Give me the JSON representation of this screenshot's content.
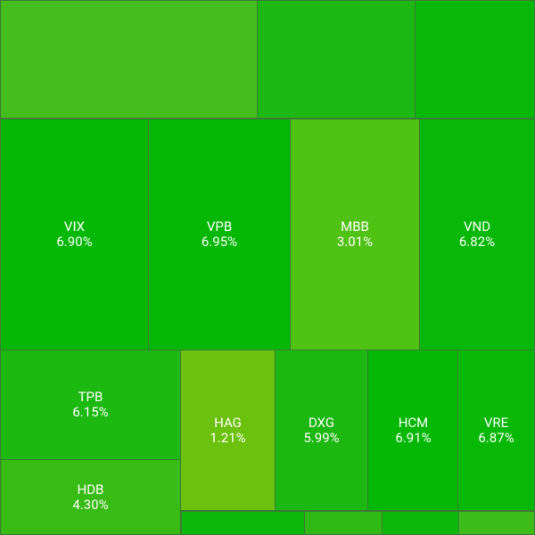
{
  "chart_data": {
    "type": "treemap",
    "categories": [
      "VIX",
      "VPB",
      "MBB",
      "VND",
      "TPB",
      "HDB",
      "HAG",
      "DXG",
      "HCM",
      "VRE"
    ],
    "values": [
      6.9,
      6.95,
      3.01,
      6.82,
      6.15,
      4.3,
      1.21,
      5.99,
      6.91,
      6.87
    ],
    "value_labels": [
      "6.90%",
      "6.95%",
      "3.01%",
      "6.82%",
      "6.15%",
      "4.30%",
      "1.21%",
      "5.99%",
      "6.91%",
      "6.87%"
    ],
    "colors": [
      "#06b806",
      "#06b806",
      "#4fc213",
      "#08b808",
      "#1db812",
      "#38bb14",
      "#6cc10e",
      "#1cb710",
      "#06b806",
      "#07b807"
    ]
  }
}
